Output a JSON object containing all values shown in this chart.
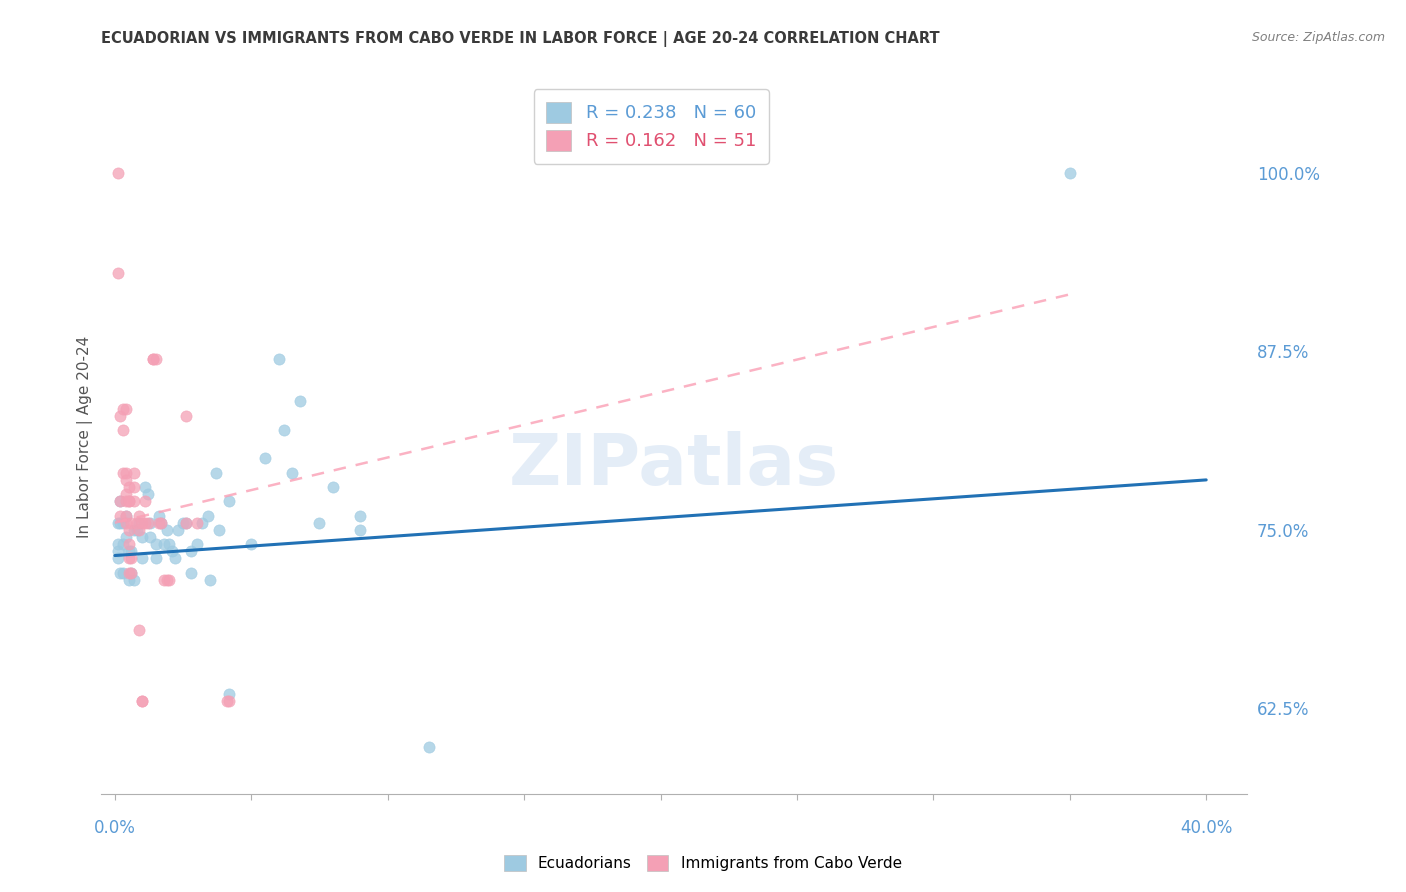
{
  "title": "ECUADORIAN VS IMMIGRANTS FROM CABO VERDE IN LABOR FORCE | AGE 20-24 CORRELATION CHART",
  "source": "Source: ZipAtlas.com",
  "ylabel": "In Labor Force | Age 20-24",
  "right_yticks": [
    62.5,
    75.0,
    87.5,
    100.0
  ],
  "right_yticklabels": [
    "62.5%",
    "75.0%",
    "87.5%",
    "100.0%"
  ],
  "legend_r1": "R = 0.238   N = 60",
  "legend_r2": "R = 0.162   N = 51",
  "watermark": "ZIPatlas",
  "blue_marker_color": "#9ecae1",
  "pink_marker_color": "#f4a0b5",
  "blue_line_color": "#2171b5",
  "pink_line_color": "#fa9fb5",
  "blue_scatter": [
    [
      0.1,
      73.5
    ],
    [
      0.1,
      74.0
    ],
    [
      0.1,
      73.0
    ],
    [
      0.1,
      75.5
    ],
    [
      0.2,
      72.0
    ],
    [
      0.2,
      75.5
    ],
    [
      0.2,
      77.0
    ],
    [
      0.3,
      74.0
    ],
    [
      0.3,
      75.5
    ],
    [
      0.3,
      72.0
    ],
    [
      0.4,
      74.5
    ],
    [
      0.4,
      76.0
    ],
    [
      0.5,
      73.5
    ],
    [
      0.5,
      71.5
    ],
    [
      0.6,
      73.5
    ],
    [
      0.6,
      72.0
    ],
    [
      0.7,
      71.5
    ],
    [
      0.7,
      75.0
    ],
    [
      0.8,
      75.0
    ],
    [
      0.9,
      75.5
    ],
    [
      1.0,
      73.0
    ],
    [
      1.0,
      74.5
    ],
    [
      1.1,
      78.0
    ],
    [
      1.2,
      77.5
    ],
    [
      1.3,
      74.5
    ],
    [
      1.3,
      75.5
    ],
    [
      1.5,
      74.0
    ],
    [
      1.5,
      73.0
    ],
    [
      1.6,
      76.0
    ],
    [
      1.7,
      75.5
    ],
    [
      1.8,
      74.0
    ],
    [
      1.9,
      75.0
    ],
    [
      2.0,
      74.0
    ],
    [
      2.1,
      73.5
    ],
    [
      2.2,
      73.0
    ],
    [
      2.3,
      75.0
    ],
    [
      2.5,
      75.5
    ],
    [
      2.6,
      75.5
    ],
    [
      2.8,
      73.5
    ],
    [
      2.8,
      72.0
    ],
    [
      3.0,
      74.0
    ],
    [
      3.2,
      75.5
    ],
    [
      3.4,
      76.0
    ],
    [
      3.5,
      71.5
    ],
    [
      3.7,
      79.0
    ],
    [
      3.8,
      75.0
    ],
    [
      4.2,
      77.0
    ],
    [
      4.2,
      63.5
    ],
    [
      5.0,
      74.0
    ],
    [
      5.5,
      80.0
    ],
    [
      6.0,
      87.0
    ],
    [
      6.2,
      82.0
    ],
    [
      6.5,
      79.0
    ],
    [
      6.8,
      84.0
    ],
    [
      7.5,
      75.5
    ],
    [
      8.0,
      78.0
    ],
    [
      9.0,
      76.0
    ],
    [
      9.0,
      75.0
    ],
    [
      11.5,
      59.8
    ],
    [
      35.0,
      100.0
    ]
  ],
  "pink_scatter": [
    [
      0.1,
      100.0
    ],
    [
      0.1,
      93.0
    ],
    [
      0.2,
      77.0
    ],
    [
      0.2,
      83.0
    ],
    [
      0.2,
      76.0
    ],
    [
      0.3,
      83.5
    ],
    [
      0.3,
      82.0
    ],
    [
      0.3,
      79.0
    ],
    [
      0.4,
      83.5
    ],
    [
      0.4,
      79.0
    ],
    [
      0.4,
      78.5
    ],
    [
      0.4,
      77.5
    ],
    [
      0.4,
      77.0
    ],
    [
      0.4,
      76.0
    ],
    [
      0.4,
      75.5
    ],
    [
      0.5,
      78.0
    ],
    [
      0.5,
      77.0
    ],
    [
      0.5,
      77.0
    ],
    [
      0.5,
      75.0
    ],
    [
      0.5,
      74.0
    ],
    [
      0.5,
      73.0
    ],
    [
      0.5,
      72.0
    ],
    [
      0.6,
      75.5
    ],
    [
      0.6,
      73.0
    ],
    [
      0.6,
      72.0
    ],
    [
      0.7,
      79.0
    ],
    [
      0.7,
      78.0
    ],
    [
      0.7,
      77.0
    ],
    [
      0.8,
      75.5
    ],
    [
      0.9,
      76.0
    ],
    [
      0.9,
      75.0
    ],
    [
      0.9,
      68.0
    ],
    [
      1.0,
      75.5
    ],
    [
      1.0,
      63.0
    ],
    [
      1.0,
      63.0
    ],
    [
      1.1,
      77.0
    ],
    [
      1.1,
      75.5
    ],
    [
      1.2,
      75.5
    ],
    [
      1.4,
      87.0
    ],
    [
      1.4,
      87.0
    ],
    [
      1.5,
      87.0
    ],
    [
      1.6,
      75.5
    ],
    [
      1.7,
      75.5
    ],
    [
      1.8,
      71.5
    ],
    [
      1.9,
      71.5
    ],
    [
      2.0,
      71.5
    ],
    [
      2.6,
      83.0
    ],
    [
      2.6,
      75.5
    ],
    [
      3.0,
      75.5
    ],
    [
      4.1,
      63.0
    ],
    [
      4.2,
      63.0
    ]
  ],
  "xlim_min": -0.5,
  "xlim_max": 41.5,
  "ylim_min": 56.5,
  "ylim_max": 106.5,
  "blue_trend_x": [
    0.0,
    40.0
  ],
  "blue_trend_y": [
    73.2,
    78.5
  ],
  "pink_trend_x": [
    0.0,
    35.0
  ],
  "pink_trend_y": [
    75.5,
    91.5
  ],
  "xtick_positions": [
    0,
    5,
    10,
    15,
    20,
    25,
    30,
    35,
    40
  ],
  "legend_blue_color": "#9ecae1",
  "legend_pink_color": "#f4a0b5",
  "legend_text_blue": "#5b9bd5",
  "legend_text_pink": "#e05070"
}
